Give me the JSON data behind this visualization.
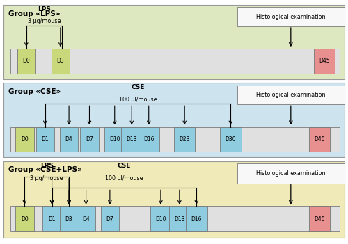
{
  "fig_w": 5.0,
  "fig_h": 3.51,
  "panel_bg_colors": [
    "#dde8c0",
    "#cde3ee",
    "#f0eab8"
  ],
  "panel_border_color": "#aaaaaa",
  "panel_titles": [
    "Group «LPS»",
    "Group «CSE»",
    "Group «CSE+LPS»"
  ],
  "timeline_bg": "#e0e0e0",
  "timeline_border": "#888888",
  "green_box_color": "#c8d87a",
  "blue_box_color": "#90cce0",
  "red_box_color": "#e89090",
  "hist_box_bg": "#f8f8f8",
  "hist_box_border": "#888888",
  "lps_group": {
    "lps_days": [
      0,
      3
    ],
    "green_days": [
      0,
      3
    ],
    "blue_days": [],
    "red_days": [
      45
    ],
    "all_days": [
      0,
      3,
      45
    ]
  },
  "cse_group": {
    "cse_days": [
      1,
      4,
      7,
      10,
      13,
      16,
      23,
      30
    ],
    "green_days": [
      0
    ],
    "blue_days": [
      1,
      4,
      7,
      10,
      13,
      16,
      23,
      30
    ],
    "red_days": [
      45
    ],
    "all_days": [
      0,
      1,
      4,
      7,
      10,
      13,
      16,
      23,
      30,
      45
    ]
  },
  "cselps_group": {
    "lps_days": [
      0,
      1,
      3
    ],
    "cse_days": [
      1,
      3,
      4,
      7,
      10,
      13,
      16
    ],
    "green_days": [
      0
    ],
    "blue_days": [
      1,
      3,
      4,
      7,
      10,
      13,
      16
    ],
    "red_days": [
      45
    ],
    "all_days": [
      0,
      1,
      3,
      4,
      7,
      10,
      13,
      16,
      45
    ]
  },
  "day_positions": {
    "lps": {
      "0": 0.04,
      "3": 0.14,
      "45": 0.91
    },
    "cse": {
      "0": 0.035,
      "1": 0.095,
      "4": 0.165,
      "7": 0.225,
      "10": 0.295,
      "13": 0.345,
      "16": 0.395,
      "23": 0.5,
      "30": 0.635,
      "45": 0.895
    },
    "cselps": {
      "0": 0.035,
      "1": 0.115,
      "3": 0.165,
      "4": 0.215,
      "7": 0.285,
      "10": 0.43,
      "13": 0.485,
      "16": 0.535,
      "45": 0.895
    }
  }
}
